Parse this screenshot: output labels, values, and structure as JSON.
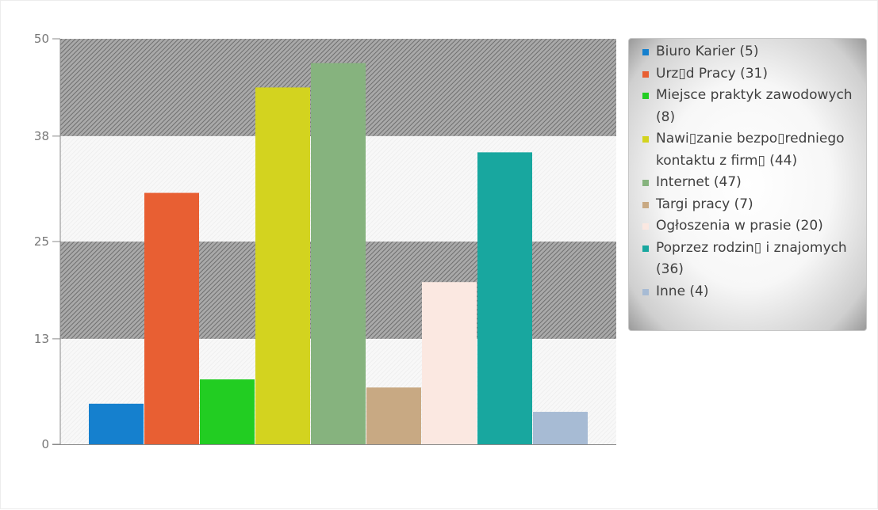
{
  "chart_data": {
    "type": "bar",
    "title": "",
    "xlabel": "",
    "ylabel": "",
    "ylim": [
      0,
      50
    ],
    "yticks": [
      "0",
      "13",
      "25",
      "38",
      "50"
    ],
    "grid": "horizontal bands",
    "legend_position": "right",
    "series": [
      {
        "label": "Biuro Karier (5)",
        "value": 5,
        "color": "#1580ce"
      },
      {
        "label": "Urz▯d Pracy (31)",
        "value": 31,
        "color": "#e85f33"
      },
      {
        "label": "Miejsce praktyk zawodowych (8)",
        "value": 8,
        "color": "#22cd22"
      },
      {
        "label": "Nawi▯zanie bezpo▯redniego kontaktu z firm▯ (44)",
        "value": 44,
        "color": "#d3d31f"
      },
      {
        "label": "Internet (47)",
        "value": 47,
        "color": "#86b37e"
      },
      {
        "label": "Targi pracy (7)",
        "value": 7,
        "color": "#c8a983"
      },
      {
        "label": "Ogłoszenia w prasie (20)",
        "value": 20,
        "color": "#fbe8e1"
      },
      {
        "label": "Poprzez rodzin▯ i znajomych (36)",
        "value": 36,
        "color": "#18a79f"
      },
      {
        "label": "Inne (4)",
        "value": 4,
        "color": "#a7bbd4"
      }
    ]
  }
}
